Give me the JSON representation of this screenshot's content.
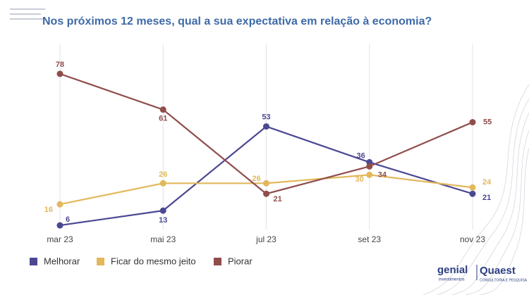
{
  "chart_data": {
    "type": "line",
    "title": "Nos próximos 12 meses, qual a sua expectativa em relação à economia?",
    "categories": [
      "mar 23",
      "mai 23",
      "jul 23",
      "set 23",
      "nov 23"
    ],
    "series": [
      {
        "name": "Melhorar",
        "color": "#4b4893",
        "values": [
          6,
          13,
          53,
          36,
          21
        ]
      },
      {
        "name": "Ficar do mesmo jeito",
        "color": "#e2b85b",
        "values": [
          16,
          26,
          26,
          30,
          24
        ]
      },
      {
        "name": "Piorar",
        "color": "#8f4d4b",
        "values": [
          78,
          61,
          21,
          34,
          55
        ]
      }
    ],
    "ylim": [
      0,
      90
    ],
    "grid": true,
    "legend": "bottom-left"
  },
  "logo": {
    "left": "genial",
    "left_sub": "investimentos",
    "right": "Quaest",
    "right_sub": "CONSULTORIA E PESQUISA"
  }
}
